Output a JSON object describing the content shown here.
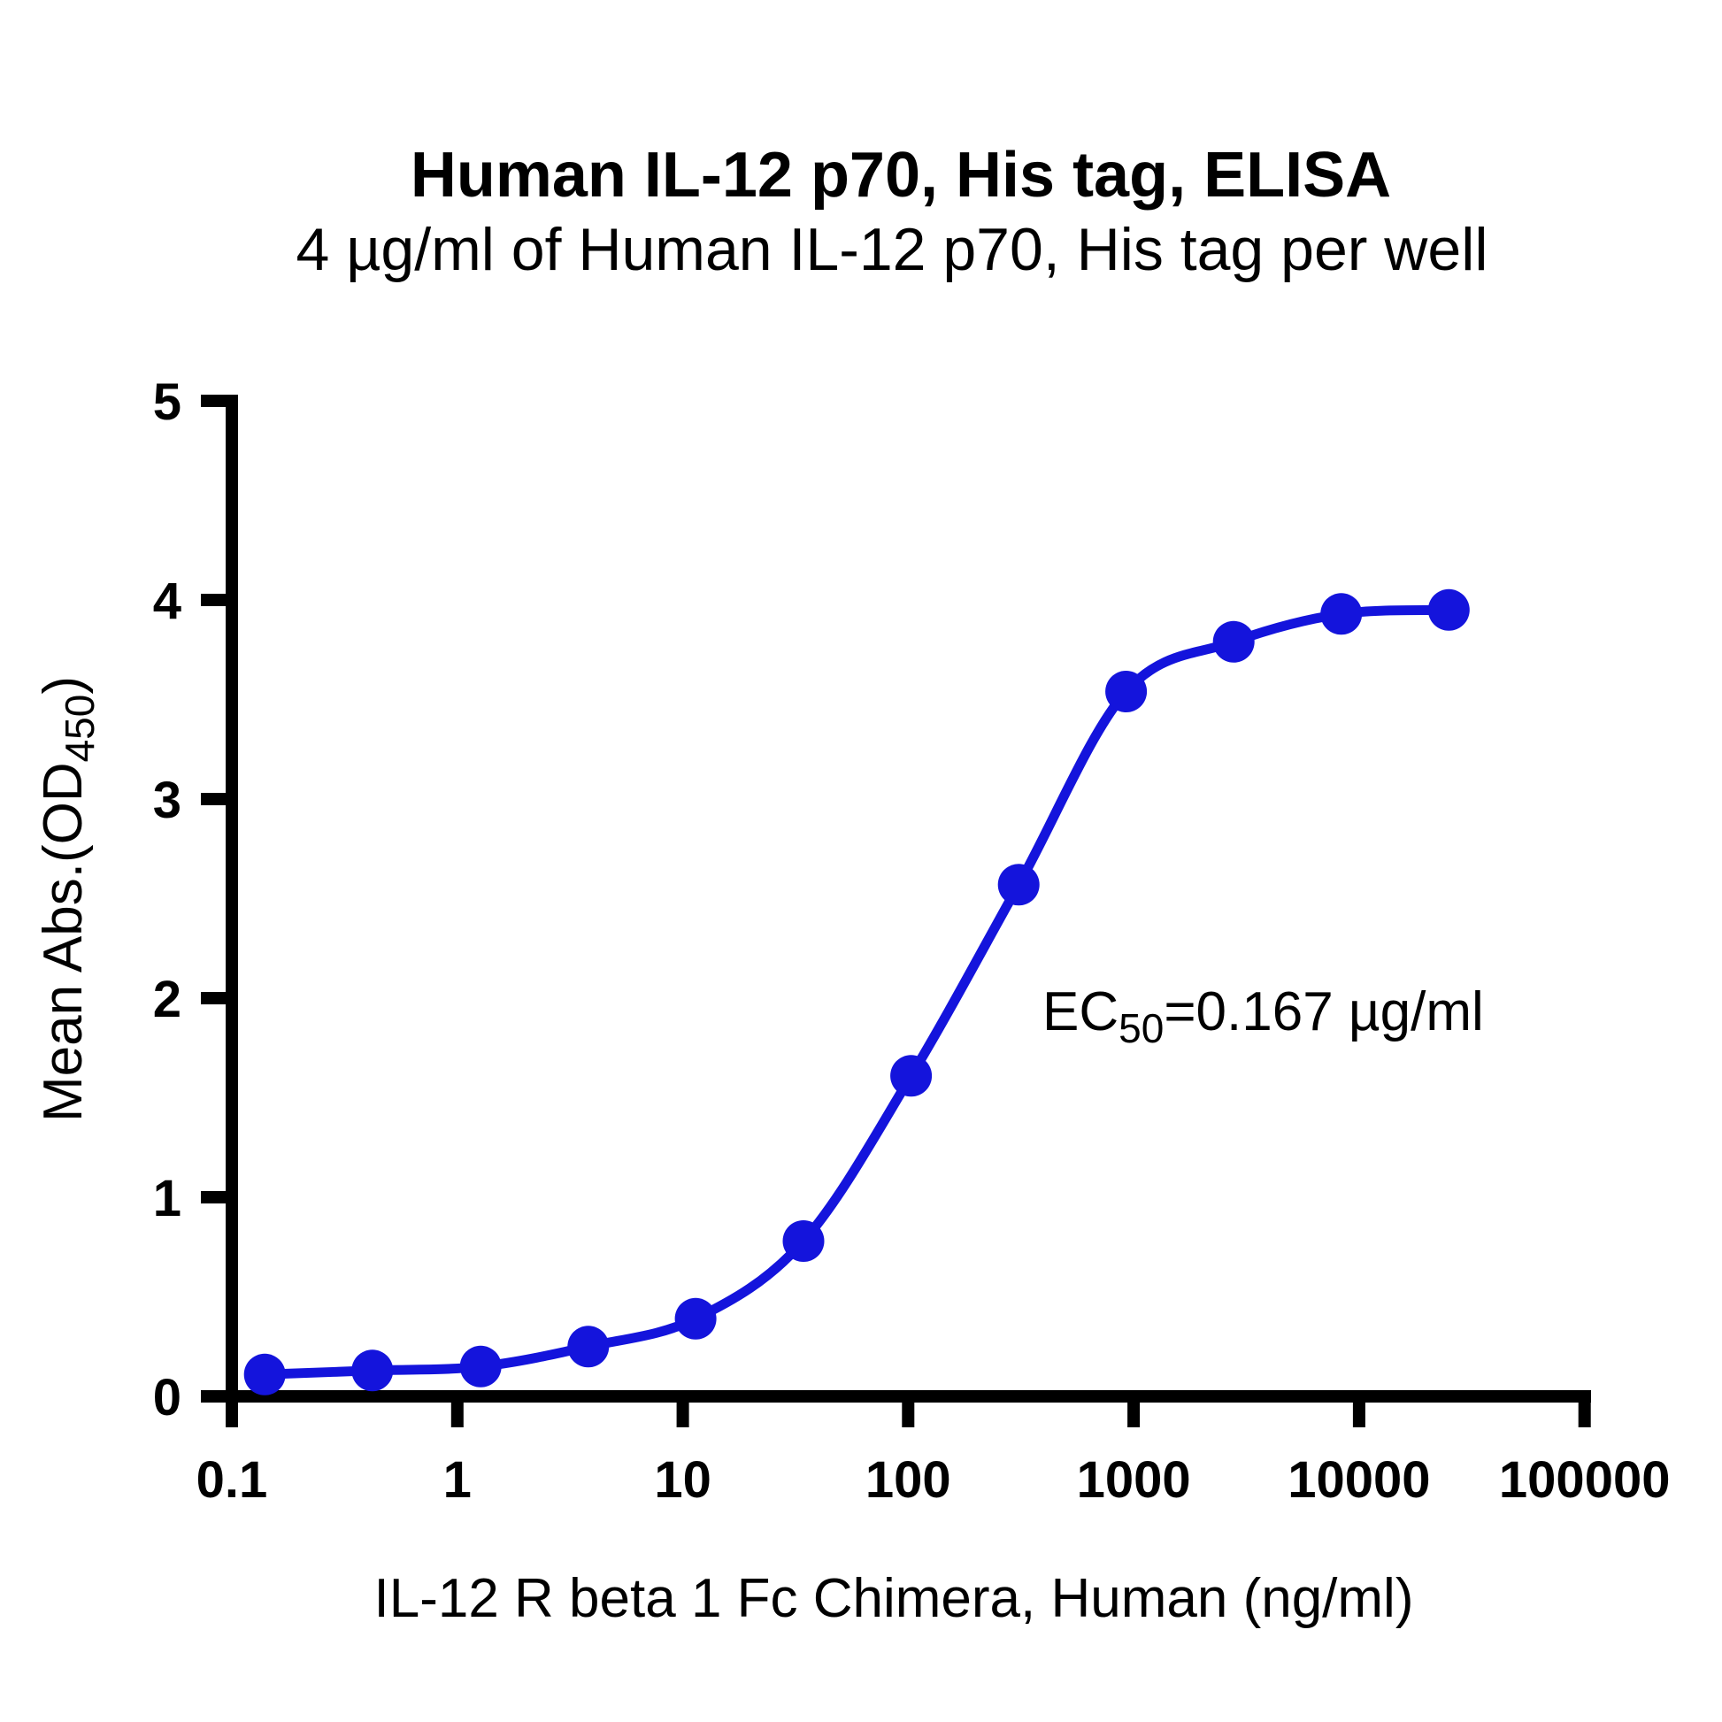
{
  "title": "Human IL-12 p70, His tag, ELISA",
  "subtitle": "4 µg/ml of Human IL-12 p70, His tag per well",
  "text": {
    "y_label_main": "Mean Abs.(OD",
    "y_label_sub": "450",
    "y_label_close": ")",
    "ec50_prefix": "EC",
    "ec50_sub": "50",
    "ec50_rest": "=0.167 µg/ml"
  },
  "chart_data": {
    "type": "line",
    "title": "Human IL-12 p70, His tag, ELISA",
    "subtitle": "4 µg/ml of Human IL-12 p70, His tag per well",
    "xlabel": "IL-12 R beta 1 Fc Chimera, Human (ng/ml)",
    "ylabel": "Mean Abs.(OD450)",
    "xscale": "log",
    "xlim": [
      0.1,
      100000
    ],
    "ylim": [
      0,
      5
    ],
    "x_ticks": [
      "0.1",
      "1",
      "10",
      "100",
      "1000",
      "10000",
      "100000"
    ],
    "y_ticks": [
      "0",
      "1",
      "2",
      "3",
      "4",
      "5"
    ],
    "x": [
      0.14,
      0.42,
      1.27,
      3.81,
      11.4,
      34.3,
      103,
      309,
      926,
      2778,
      8333,
      25000
    ],
    "y": [
      0.11,
      0.13,
      0.15,
      0.25,
      0.39,
      0.78,
      1.61,
      2.57,
      3.54,
      3.79,
      3.93,
      3.95
    ],
    "annotation": "EC50=0.167 µg/ml",
    "line_color": "#1414dc",
    "marker_color": "#1414dc",
    "marker_radius": 23.5,
    "line_width": 11
  }
}
